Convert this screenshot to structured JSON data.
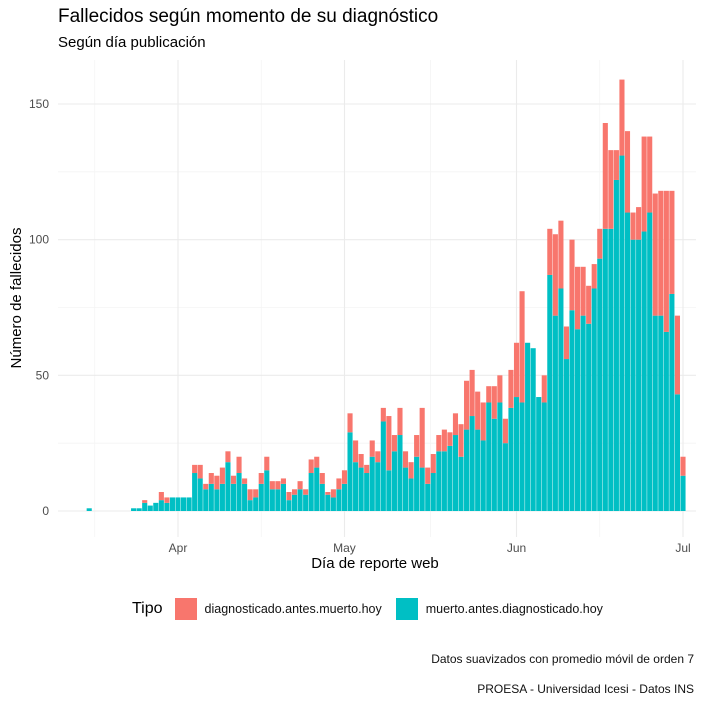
{
  "header": {
    "title": "Fallecidos según momento de su diagnóstico",
    "subtitle": "Según día publicación"
  },
  "legend": {
    "title": "Tipo",
    "items": [
      {
        "label": "diagnosticado.antes.muerto.hoy",
        "color": "#F8766D"
      },
      {
        "label": "muerto.antes.diagnosticado.hoy",
        "color": "#00BFC4"
      }
    ]
  },
  "captions": {
    "line1": "Datos suavizados con promedio móvil de orden 7",
    "line2": "PROESA - Universidad Icesi - Datos INS"
  },
  "chart_data": {
    "type": "bar",
    "stacked": true,
    "xlabel": "Día de reporte web",
    "ylabel": "Número de fallecidos",
    "x_start": "2020-03-16",
    "ylim": [
      -7,
      160
    ],
    "yticks": [
      0,
      50,
      100,
      150
    ],
    "xticks": [
      {
        "date": "2020-04-01",
        "label": "Apr"
      },
      {
        "date": "2020-05-01",
        "label": "May"
      },
      {
        "date": "2020-06-01",
        "label": "Jun"
      },
      {
        "date": "2020-07-01",
        "label": "Jul"
      }
    ],
    "grid": true,
    "legend_position": "bottom",
    "series": [
      {
        "name": "muerto.antes.diagnosticado.hoy",
        "color": "#00BFC4",
        "values": [
          1,
          0,
          0,
          0,
          0,
          0,
          0,
          0,
          1,
          1,
          3,
          2,
          3,
          4,
          3,
          5,
          5,
          5,
          5,
          14,
          12,
          8,
          10,
          8,
          10,
          18,
          10,
          14,
          10,
          4,
          5,
          10,
          15,
          8,
          8,
          10,
          4,
          6,
          8,
          6,
          14,
          16,
          10,
          6,
          5,
          8,
          10,
          29,
          18,
          16,
          14,
          20,
          18,
          33,
          15,
          22,
          28,
          16,
          12,
          20,
          16,
          10,
          14,
          22,
          22,
          24,
          28,
          20,
          30,
          35,
          30,
          26,
          40,
          34,
          40,
          25,
          38,
          42,
          40,
          62,
          60,
          42,
          40,
          87,
          72,
          82,
          56,
          74,
          67,
          72,
          69,
          82,
          93,
          104,
          104,
          122,
          131,
          110,
          100,
          100,
          103,
          110,
          72,
          72,
          66,
          80,
          43,
          13
        ]
      },
      {
        "name": "diagnosticado.antes.muerto.hoy",
        "color": "#F8766D",
        "values": [
          0,
          0,
          0,
          0,
          0,
          0,
          0,
          0,
          0,
          0,
          1,
          0,
          0,
          3,
          2,
          0,
          0,
          0,
          0,
          3,
          5,
          2,
          4,
          5,
          6,
          4,
          3,
          6,
          2,
          4,
          3,
          4,
          5,
          3,
          3,
          2,
          3,
          2,
          3,
          2,
          5,
          4,
          4,
          1,
          3,
          4,
          5,
          7,
          8,
          5,
          3,
          6,
          4,
          5,
          20,
          6,
          10,
          6,
          6,
          8,
          22,
          6,
          7,
          6,
          8,
          5,
          8,
          12,
          18,
          17,
          14,
          14,
          6,
          12,
          10,
          9,
          14,
          20,
          41,
          0,
          0,
          0,
          10,
          17,
          30,
          25,
          12,
          26,
          23,
          18,
          14,
          9,
          11,
          39,
          29,
          11,
          28,
          30,
          10,
          12,
          35,
          28,
          45,
          46,
          52,
          38,
          29,
          7
        ]
      }
    ]
  }
}
